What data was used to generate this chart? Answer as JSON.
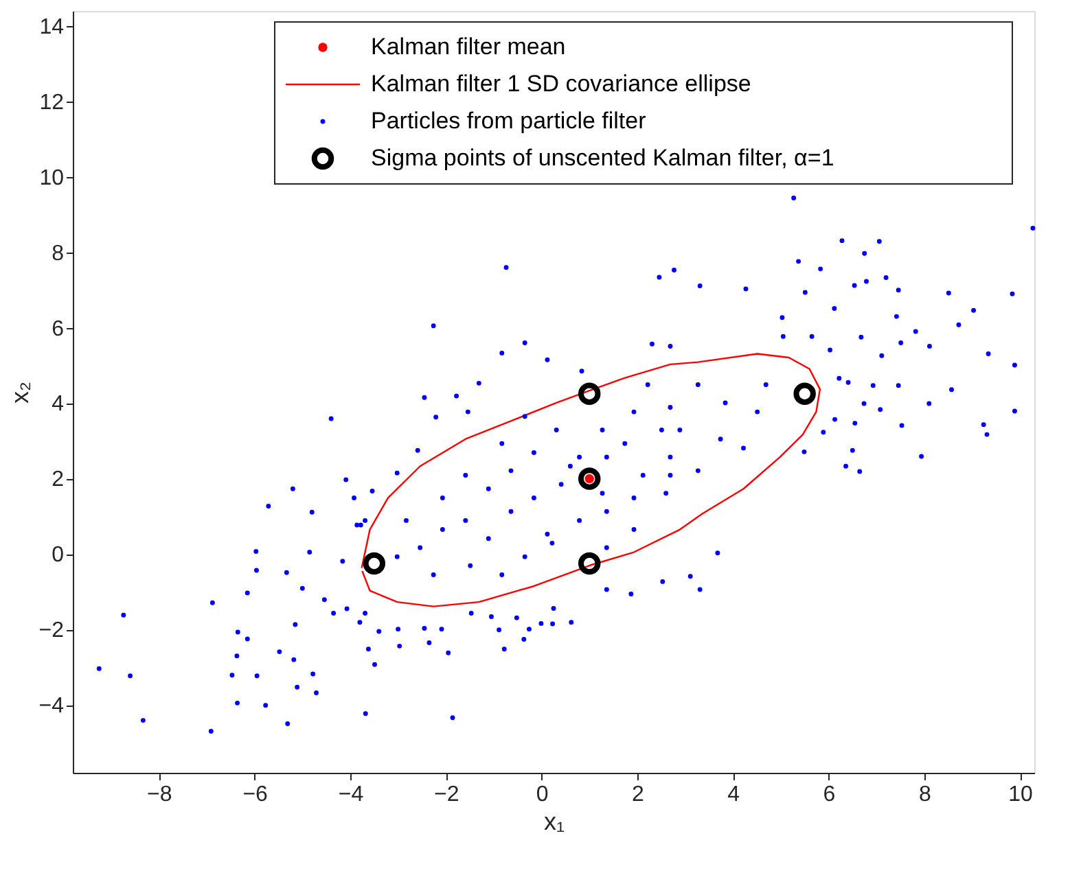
{
  "chart_data": {
    "type": "scatter",
    "xlabel": "x₁",
    "ylabel": "x₂",
    "xlim": [
      -9.8,
      10.3
    ],
    "ylim": [
      -5.8,
      14.4
    ],
    "xticks": [
      -8,
      -6,
      -4,
      -2,
      0,
      2,
      4,
      6,
      8,
      10
    ],
    "yticks": [
      -4,
      -2,
      0,
      2,
      4,
      6,
      8,
      10,
      12,
      14
    ],
    "legend": "top right",
    "series": [
      {
        "name": "Kalman filter mean",
        "color": "#ff0000",
        "marker": "circle",
        "x": [
          1
        ],
        "values": [
          2
        ]
      },
      {
        "name": "Kalman filter 1 SD covariance ellipse",
        "color": "#ff0000",
        "type": "line",
        "x": [
          -3.76,
          -3.59,
          -3.21,
          -2.54,
          -1.59,
          -0.64,
          0.31,
          1.01,
          1.74,
          2.69,
          3.27,
          4.51,
          5.17,
          5.6,
          5.82,
          5.74,
          5.46,
          4.98,
          4.22,
          3.36,
          2.89,
          1.93,
          1.01,
          -0.16,
          -1.31,
          -2.26,
          -3.02,
          -3.59,
          -3.75
        ],
        "values": [
          -0.37,
          0.65,
          1.49,
          2.33,
          3.05,
          3.53,
          4.01,
          4.34,
          4.67,
          5.03,
          5.09,
          5.31,
          5.21,
          4.91,
          4.37,
          3.77,
          3.17,
          2.57,
          1.73,
          1.07,
          0.65,
          0.05,
          -0.3,
          -0.85,
          -1.27,
          -1.39,
          -1.27,
          -0.97,
          -0.45
        ]
      },
      {
        "name": "Particles from particle filter",
        "color": "#0000ff",
        "marker": "circle",
        "x": [
          -4.4,
          -5.2,
          -5.71,
          -4.8,
          -4.09,
          -6.88,
          -8.74,
          -9.25,
          -8.6,
          -8.33,
          -6.91,
          -6.35,
          -6.15,
          -6.37,
          -6.47,
          -5.95,
          -6.36,
          -5.77,
          -5.31,
          -5.11,
          -4.78,
          -4.71,
          -5.18,
          -5.48,
          -5.15,
          -5.96,
          -5.97,
          -6.15,
          -5.33,
          -4.85,
          -5.0,
          -4.54,
          -4.35,
          -4.07,
          -3.69,
          -3.62,
          -3.49,
          -3.68,
          -4.16,
          -3.69,
          -3.86,
          -1.86,
          -2.97,
          -1.95,
          -2.35,
          -0.78,
          -0.37,
          -0.89,
          -0.52,
          -0.01,
          0.23,
          0.62,
          0.25,
          1.36,
          1.87,
          3.11,
          3.31,
          3.68,
          2.53,
          -3.0,
          -3.4,
          -3.8,
          -2.45,
          -2.09,
          -1.47,
          -1.05,
          -0.26,
          10.27,
          6.28,
          6.75,
          5.37,
          5.83,
          7.2,
          6.79,
          6.54,
          7.46,
          8.51,
          9.84,
          5.51,
          6.12,
          9.03,
          7.42,
          8.72,
          7.82,
          6.68,
          7.51,
          8.11,
          9.34,
          7.11,
          6.03,
          5.65,
          5.05,
          5.03,
          6.22,
          6.41,
          6.93,
          7.46,
          8.57,
          9.89,
          6.74,
          7.08,
          8.1,
          9.89,
          7.53,
          6.55,
          6.5,
          6.36,
          6.65,
          7.94,
          9.24,
          9.31,
          6.13,
          5.89,
          5.49,
          5.27,
          2.77,
          3.31,
          4.27,
          2.46,
          7.06,
          -0.35,
          -0.83,
          0.12,
          0.84,
          -2.45,
          -1.78,
          -1.31,
          -1.54,
          -2.21,
          -2.59,
          -3.02,
          -3.54,
          -3.78,
          -3.92,
          2.31,
          2.69,
          -2.26,
          -0.74,
          -2.54,
          -2.07,
          -1.59,
          -1.11,
          -0.64,
          -0.16,
          0.12,
          0.41,
          0.6,
          1.36,
          1.74,
          2.12,
          2.51,
          1.93,
          1.27,
          0.31,
          -0.16,
          -0.64,
          -1.11,
          -1.59,
          -2.07,
          -2.83,
          -3.02,
          -2.26,
          -1.49,
          -0.83,
          -0.35,
          0.22,
          0.79,
          1.36,
          1.93,
          2.69,
          2.69,
          2.22,
          -0.35,
          -0.83,
          1.27,
          0.79,
          1.93,
          1.36,
          3.27,
          3.84,
          4.51,
          3.74,
          2.89,
          3.27,
          4.22,
          4.69,
          2.69,
          2.6
        ],
        "values": [
          3.59,
          1.73,
          1.27,
          1.11,
          1.97,
          -1.29,
          -1.62,
          -3.04,
          -3.23,
          -4.41,
          -4.7,
          -2.07,
          -2.25,
          -2.7,
          -3.21,
          -3.23,
          -3.95,
          -4.01,
          -4.5,
          -3.53,
          -3.18,
          -3.68,
          -2.8,
          -2.59,
          -1.87,
          -0.43,
          0.07,
          -1.03,
          -0.49,
          0.05,
          -0.91,
          -1.21,
          -1.57,
          -1.45,
          -1.57,
          -2.52,
          -2.93,
          -4.23,
          -0.19,
          0.89,
          0.77,
          -4.34,
          -2.44,
          -2.62,
          -2.35,
          -2.52,
          -2.26,
          -2.01,
          -1.69,
          -1.84,
          -1.85,
          -1.81,
          -1.44,
          -0.94,
          -1.06,
          -0.59,
          -0.94,
          0.03,
          -0.73,
          -1.99,
          -2.05,
          -1.81,
          -1.97,
          -1.99,
          -1.57,
          -1.66,
          -1.99,
          8.64,
          8.31,
          7.97,
          7.76,
          7.56,
          7.33,
          7.23,
          7.12,
          7.0,
          6.92,
          6.9,
          6.94,
          6.51,
          6.46,
          6.3,
          6.08,
          5.9,
          5.75,
          5.6,
          5.51,
          5.31,
          5.26,
          5.41,
          5.77,
          5.77,
          6.27,
          4.66,
          4.55,
          4.47,
          4.47,
          4.36,
          5.01,
          3.99,
          3.83,
          3.99,
          3.79,
          3.41,
          3.47,
          2.75,
          2.33,
          2.19,
          2.59,
          3.43,
          3.17,
          3.57,
          3.23,
          2.71,
          9.44,
          7.53,
          7.11,
          7.03,
          7.34,
          8.29,
          5.6,
          5.33,
          5.15,
          4.85,
          4.15,
          4.19,
          4.53,
          3.77,
          3.63,
          2.75,
          2.15,
          1.67,
          0.77,
          1.49,
          5.57,
          5.51,
          6.05,
          7.6,
          0.17,
          0.65,
          0.89,
          0.41,
          1.13,
          1.49,
          0.53,
          1.85,
          2.33,
          2.57,
          2.93,
          2.09,
          3.29,
          3.77,
          3.29,
          3.29,
          2.69,
          2.21,
          1.73,
          2.09,
          1.49,
          0.89,
          -0.07,
          -0.55,
          -0.31,
          -0.55,
          -0.07,
          0.29,
          0.89,
          1.13,
          1.49,
          2.09,
          3.89,
          4.49,
          3.65,
          2.93,
          1.61,
          2.57,
          0.65,
          0.17,
          4.49,
          4.01,
          3.77,
          3.05,
          3.29,
          2.21,
          2.81,
          4.49,
          2.57,
          1.61
        ]
      },
      {
        "name": "Sigma points of unscented Kalman filter, α=1",
        "color": "#000000",
        "marker": "circle",
        "x": [
          1,
          -3.5,
          5.5,
          1,
          1
        ],
        "values": [
          2,
          -0.25,
          4.25,
          -0.25,
          4.25
        ]
      }
    ]
  }
}
